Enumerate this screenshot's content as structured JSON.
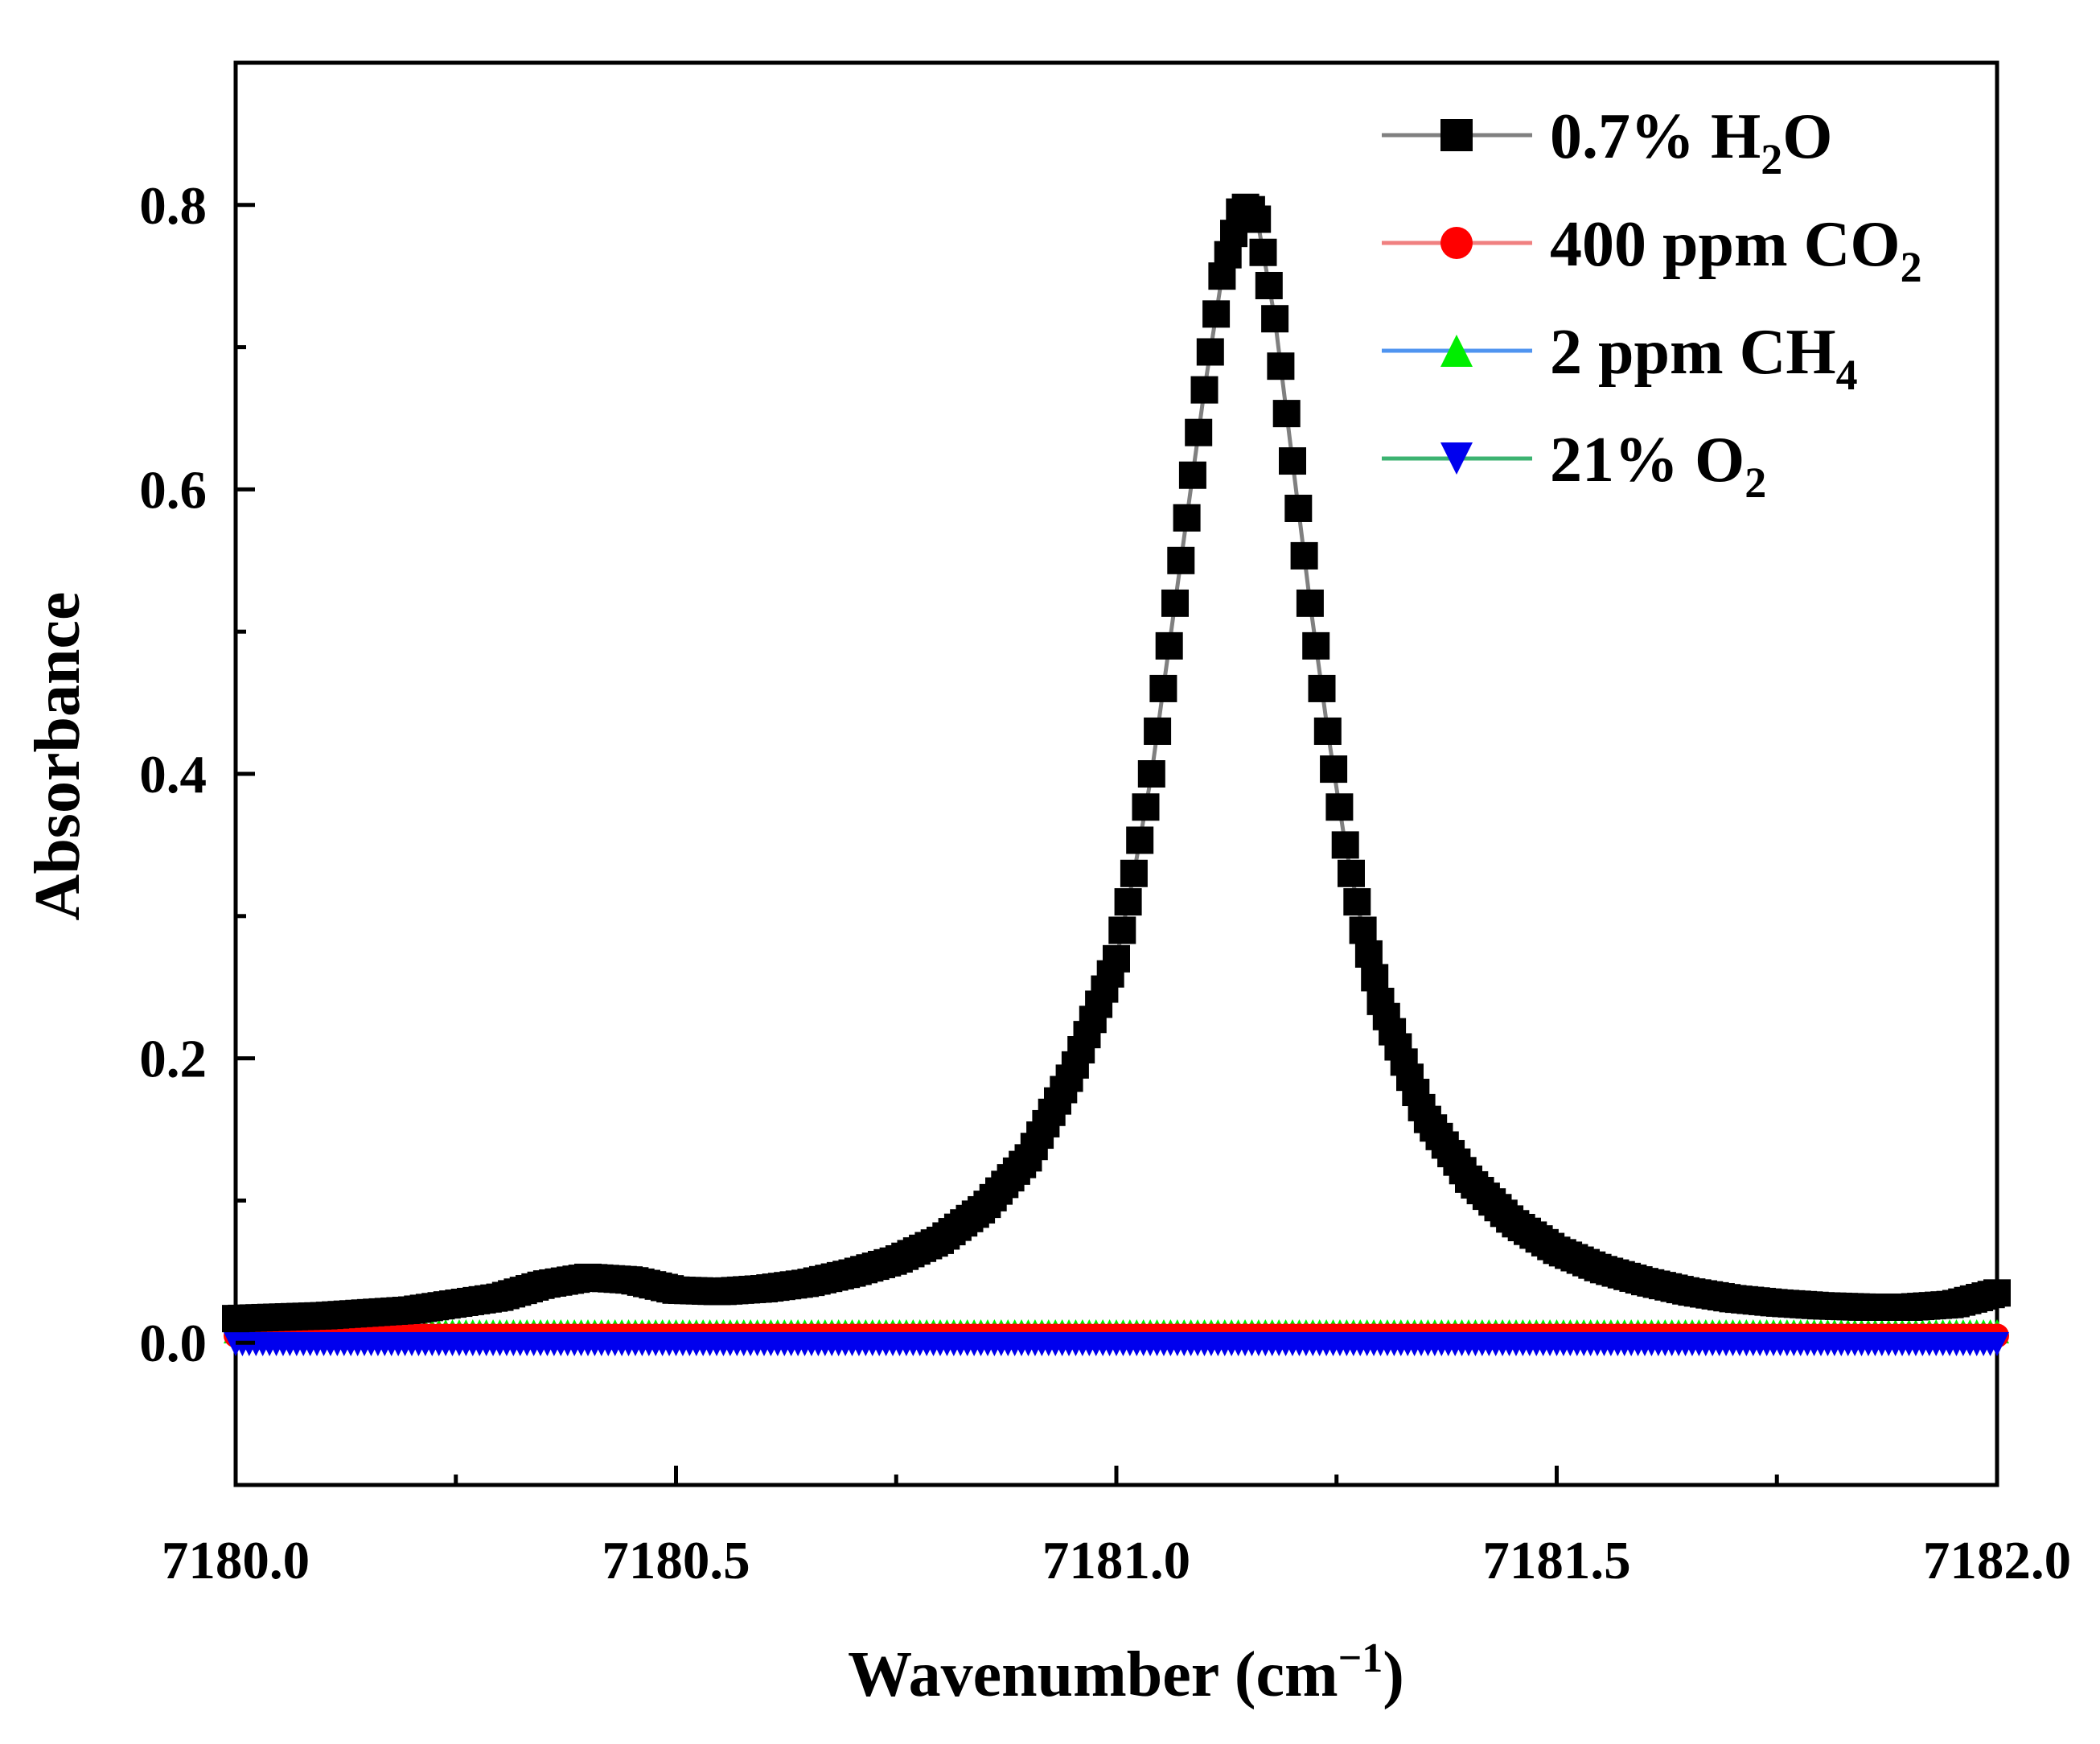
{
  "chart_data": {
    "type": "line",
    "title": "",
    "xlabel_main": "Wavenumber (cm",
    "xlabel_sup": "−1",
    "xlabel_end": ")",
    "ylabel": "Absorbance",
    "xlim": [
      7180.0,
      7182.0
    ],
    "ylim": [
      -0.1,
      0.9
    ],
    "x_ticks": [
      7180.0,
      7180.5,
      7181.0,
      7181.5,
      7182.0
    ],
    "x_tick_labels": [
      "7180.0",
      "7180.5",
      "7181.0",
      "7181.5",
      "7182.0"
    ],
    "x_minor_ticks": [
      7180.25,
      7180.75,
      7181.25,
      7181.75
    ],
    "y_ticks": [
      0.0,
      0.2,
      0.4,
      0.6,
      0.8
    ],
    "y_tick_labels": [
      "0.0",
      "0.2",
      "0.4",
      "0.6",
      "0.8"
    ],
    "y_minor_ticks": [
      -0.1,
      0.1,
      0.3,
      0.5,
      0.7
    ],
    "grid": false,
    "legend_position": "top-right",
    "series": [
      {
        "name": "0.7% H2O",
        "label_main": "0.7% H",
        "label_sub": "2",
        "label_end": "O",
        "marker": "square",
        "marker_color": "#000000",
        "line_color": "#808080",
        "x": [
          7180.0,
          7180.1,
          7180.2,
          7180.3,
          7180.35,
          7180.4,
          7180.45,
          7180.5,
          7180.55,
          7180.6,
          7180.65,
          7180.7,
          7180.75,
          7180.8,
          7180.85,
          7180.9,
          7180.95,
          7181.0,
          7181.02,
          7181.04,
          7181.06,
          7181.08,
          7181.1,
          7181.12,
          7181.14,
          7181.15,
          7181.16,
          7181.18,
          7181.2,
          7181.22,
          7181.24,
          7181.26,
          7181.28,
          7181.3,
          7181.35,
          7181.4,
          7181.45,
          7181.5,
          7181.55,
          7181.6,
          7181.65,
          7181.7,
          7181.75,
          7181.8,
          7181.85,
          7181.9,
          7181.95,
          7182.0
        ],
        "y": [
          0.017,
          0.019,
          0.023,
          0.032,
          0.041,
          0.046,
          0.044,
          0.037,
          0.036,
          0.038,
          0.042,
          0.049,
          0.058,
          0.072,
          0.095,
          0.13,
          0.19,
          0.27,
          0.33,
          0.4,
          0.49,
          0.58,
          0.67,
          0.75,
          0.795,
          0.8,
          0.79,
          0.72,
          0.62,
          0.52,
          0.43,
          0.35,
          0.29,
          0.24,
          0.16,
          0.115,
          0.085,
          0.065,
          0.052,
          0.043,
          0.036,
          0.031,
          0.028,
          0.026,
          0.025,
          0.025,
          0.027,
          0.035
        ]
      },
      {
        "name": "400 ppm CO2",
        "label_main": "400 ppm CO",
        "label_sub": "2",
        "label_end": "",
        "marker": "circle",
        "marker_color": "#ff0000",
        "line_color": "#f08080",
        "x": [
          7180.0,
          7182.0
        ],
        "y": [
          0.005,
          0.005
        ]
      },
      {
        "name": "2 ppm CH4",
        "label_main": "2 ppm CH",
        "label_sub": "4",
        "label_end": "",
        "marker": "triangle-up",
        "marker_color": "#00ee00",
        "line_color": "#4f94f0",
        "x": [
          7180.0,
          7182.0
        ],
        "y": [
          0.008,
          0.008
        ]
      },
      {
        "name": "21% O2",
        "label_main": " 21% O",
        "label_sub": "2",
        "label_end": "",
        "marker": "triangle-down",
        "marker_color": "#0000ee",
        "line_color": "#3cb371",
        "x": [
          7180.0,
          7182.0
        ],
        "y": [
          -0.001,
          -0.001
        ]
      }
    ]
  }
}
